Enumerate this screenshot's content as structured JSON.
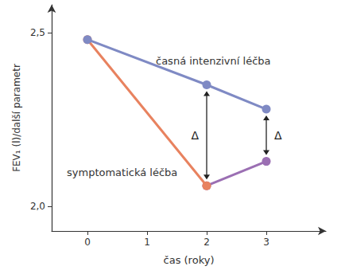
{
  "chart_data": {
    "type": "line",
    "x_label": "čas (roky)",
    "y_label": "FEV₁ (l)/další parametr",
    "x": [
      0,
      2,
      3
    ],
    "series": [
      {
        "name": "časná intenzivní léčba",
        "color": "#7f8ac4",
        "values": [
          2.48,
          2.35,
          2.28
        ]
      },
      {
        "name": "symptomatická léčba",
        "color": "#e8825f",
        "values": [
          2.48,
          2.06,
          null
        ]
      },
      {
        "color": "#9b6fb3",
        "values": [
          null,
          2.06,
          2.13
        ]
      }
    ],
    "xlim": [
      -0.6,
      4
    ],
    "xticks": [
      0,
      1,
      2,
      3
    ],
    "ylim": [
      1.93,
      2.58
    ],
    "yticks": [
      {
        "value": 2,
        "label": "2,0"
      },
      {
        "value": 2.5,
        "label": "2,5"
      }
    ],
    "annotations": [
      {
        "text": "Δ",
        "x": 2
      },
      {
        "text": "Δ",
        "x": 3
      }
    ],
    "grid": false,
    "marker": "circle"
  }
}
